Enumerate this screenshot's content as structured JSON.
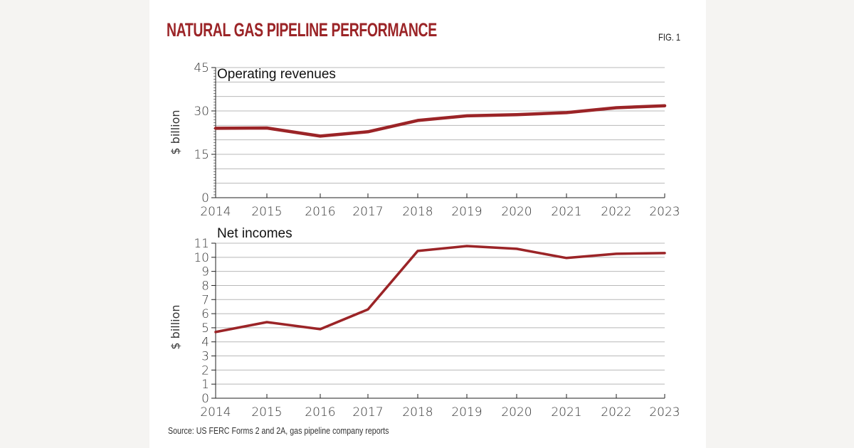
{
  "title": "NATURAL GAS PIPELINE PERFORMANCE",
  "fig_label": "FIG. 1",
  "source": "Source: US FERC Forms 2 and 2A, gas pipeline company reports",
  "line_color": "#9b2427",
  "chart_data": [
    {
      "type": "line",
      "title": "Operating revenues",
      "xlabel": "",
      "ylabel": "$ billion",
      "x": [
        "2014",
        "2015",
        "2016",
        "2017",
        "2018",
        "2019",
        "2020",
        "2021",
        "2022",
        "2023"
      ],
      "series": [
        {
          "name": "Operating revenues",
          "values": [
            24.0,
            24.1,
            21.3,
            22.8,
            26.7,
            28.3,
            28.7,
            29.4,
            31.1,
            31.8
          ]
        }
      ],
      "ylim": [
        0,
        45
      ],
      "yticks": [
        "0",
        "15",
        "30",
        "45"
      ],
      "gridlines": [
        0,
        5,
        10,
        15,
        20,
        25,
        30,
        35,
        40,
        45
      ],
      "grid": true
    },
    {
      "type": "line",
      "title": "Net incomes",
      "xlabel": "",
      "ylabel": "$ billion",
      "x": [
        "2014",
        "2015",
        "2016",
        "2017",
        "2018",
        "2019",
        "2020",
        "2021",
        "2022",
        "2023"
      ],
      "series": [
        {
          "name": "Net incomes",
          "values": [
            4.7,
            5.4,
            4.9,
            6.3,
            10.45,
            10.8,
            10.6,
            9.95,
            10.25,
            10.3
          ]
        }
      ],
      "ylim": [
        0,
        11
      ],
      "yticks": [
        "0",
        "1",
        "2",
        "3",
        "4",
        "5",
        "6",
        "7",
        "8",
        "9",
        "10",
        "11"
      ],
      "gridlines": [
        0,
        1,
        2,
        3,
        4,
        5,
        6,
        7,
        8,
        9,
        10,
        11
      ],
      "grid": true
    }
  ]
}
